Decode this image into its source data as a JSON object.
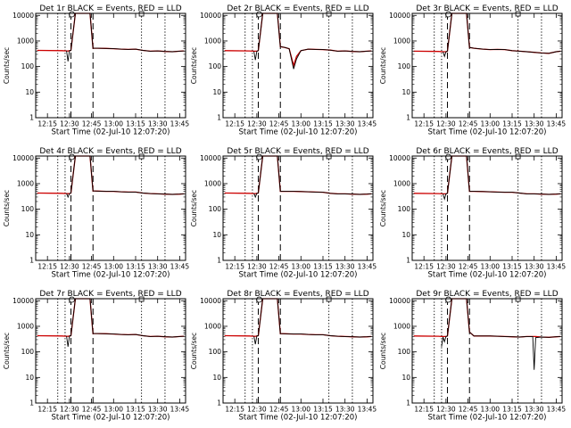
{
  "figure": {
    "x_tick_labels": [
      "12:15",
      "12:30",
      "12:45",
      "13:00",
      "13:15",
      "13:30",
      "13:45"
    ],
    "y_tick_labels": [
      "1",
      "10",
      "100",
      "1000",
      "10000"
    ]
  },
  "chart_data": [
    {
      "type": "line",
      "title": "Det 1r BLACK = Events, RED = LLD",
      "xlabel": "Start Time (02-Jul-10 12:07:20)",
      "ylabel": "Counts/sec",
      "y_scale": "log",
      "ylim": [
        1,
        12000
      ],
      "xlim": [
        "12:07",
        "13:49"
      ],
      "x": [
        "12:08",
        "12:25",
        "12:28",
        "12:29",
        "12:30",
        "12:31",
        "12:34",
        "12:37",
        "12:41",
        "12:44",
        "12:46",
        "12:49",
        "12:55",
        "13:00",
        "13:05",
        "13:10",
        "13:15",
        "13:20",
        "13:25",
        "13:30",
        "13:35",
        "13:40",
        "13:45",
        "13:48"
      ],
      "series": [
        {
          "name": "Events",
          "color": "#000000",
          "values": [
            null,
            null,
            420,
            160,
            420,
            430,
            12000,
            12000,
            12000,
            12000,
            520,
            520,
            510,
            500,
            480,
            470,
            480,
            430,
            400,
            410,
            390,
            380,
            400,
            410
          ]
        },
        {
          "name": "LLD",
          "color": "#cc0000",
          "values": [
            430,
            420,
            410,
            405,
            420,
            430,
            12000,
            12000,
            12000,
            12000,
            520,
            520,
            510,
            500,
            480,
            470,
            480,
            430,
            400,
            410,
            390,
            380,
            400,
            410
          ]
        }
      ],
      "markers": {
        "dotted": [
          "12:22",
          "12:27",
          "13:19",
          "13:35"
        ],
        "dashed": [
          "12:31",
          "12:46"
        ]
      }
    },
    {
      "type": "line",
      "title": "Det 2r BLACK = Events, RED = LLD",
      "xlabel": "Start Time (02-Jul-10 12:07:20)",
      "ylabel": "Counts/sec",
      "y_scale": "log",
      "ylim": [
        1,
        12000
      ],
      "xlim": [
        "12:07",
        "13:49"
      ],
      "x": [
        "12:08",
        "12:25",
        "12:28",
        "12:29",
        "12:30",
        "12:31",
        "12:34",
        "12:37",
        "12:41",
        "12:44",
        "12:46",
        "12:49",
        "12:52",
        "12:55",
        "12:57",
        "13:00",
        "13:05",
        "13:10",
        "13:15",
        "13:20",
        "13:25",
        "13:30",
        "13:35",
        "13:40",
        "13:45",
        "13:48"
      ],
      "series": [
        {
          "name": "Events",
          "color": "#000000",
          "values": [
            null,
            null,
            400,
            180,
            400,
            420,
            12000,
            12000,
            12000,
            12000,
            600,
            560,
            500,
            80,
            200,
            420,
            480,
            470,
            460,
            440,
            400,
            410,
            390,
            380,
            400,
            410
          ]
        },
        {
          "name": "LLD",
          "color": "#cc0000",
          "values": [
            420,
            410,
            400,
            400,
            400,
            420,
            12000,
            12000,
            12000,
            12000,
            600,
            560,
            500,
            110,
            250,
            420,
            480,
            470,
            460,
            440,
            400,
            410,
            390,
            380,
            400,
            410
          ]
        }
      ],
      "markers": {
        "dotted": [
          "12:22",
          "12:27",
          "13:19",
          "13:35"
        ],
        "dashed": [
          "12:31",
          "12:46"
        ]
      }
    },
    {
      "type": "line",
      "title": "Det 3r BLACK = Events, RED = LLD",
      "xlabel": "Start Time (02-Jul-10 12:07:20)",
      "ylabel": "Counts/sec",
      "y_scale": "log",
      "ylim": [
        1,
        12000
      ],
      "xlim": [
        "12:07",
        "13:49"
      ],
      "x": [
        "12:08",
        "12:25",
        "12:28",
        "12:29",
        "12:30",
        "12:31",
        "12:34",
        "12:37",
        "12:41",
        "12:44",
        "12:46",
        "12:49",
        "12:55",
        "13:00",
        "13:05",
        "13:10",
        "13:15",
        "13:20",
        "13:25",
        "13:30",
        "13:35",
        "13:40",
        "13:45",
        "13:48"
      ],
      "series": [
        {
          "name": "Events",
          "color": "#000000",
          "values": [
            null,
            null,
            380,
            250,
            380,
            400,
            12000,
            12000,
            12000,
            12000,
            560,
            520,
            480,
            460,
            470,
            460,
            420,
            400,
            380,
            360,
            340,
            330,
            380,
            400
          ]
        },
        {
          "name": "LLD",
          "color": "#cc0000",
          "values": [
            400,
            390,
            380,
            380,
            380,
            400,
            12000,
            12000,
            12000,
            12000,
            560,
            520,
            480,
            460,
            470,
            460,
            420,
            400,
            380,
            360,
            340,
            330,
            380,
            400
          ]
        }
      ],
      "markers": {
        "dotted": [
          "12:22",
          "12:27",
          "13:19",
          "13:35"
        ],
        "dashed": [
          "12:31",
          "12:46"
        ]
      }
    },
    {
      "type": "line",
      "title": "Det 4r BLACK = Events, RED = LLD",
      "xlabel": "Start Time (02-Jul-10 12:07:20)",
      "ylabel": "Counts/sec",
      "y_scale": "log",
      "ylim": [
        1,
        12000
      ],
      "xlim": [
        "12:07",
        "13:49"
      ],
      "x": [
        "12:08",
        "12:25",
        "12:28",
        "12:29",
        "12:30",
        "12:31",
        "12:34",
        "12:37",
        "12:41",
        "12:44",
        "12:46",
        "12:49",
        "12:55",
        "13:00",
        "13:05",
        "13:10",
        "13:15",
        "13:20",
        "13:25",
        "13:30",
        "13:35",
        "13:40",
        "13:45",
        "13:48"
      ],
      "series": [
        {
          "name": "Events",
          "color": "#000000",
          "values": [
            null,
            null,
            420,
            300,
            410,
            430,
            12000,
            12000,
            12000,
            12000,
            520,
            510,
            500,
            500,
            480,
            470,
            470,
            430,
            410,
            400,
            390,
            380,
            390,
            400
          ]
        },
        {
          "name": "LLD",
          "color": "#cc0000",
          "values": [
            430,
            420,
            410,
            405,
            410,
            430,
            12000,
            12000,
            12000,
            12000,
            520,
            510,
            500,
            500,
            480,
            470,
            470,
            430,
            410,
            400,
            390,
            380,
            390,
            400
          ]
        }
      ],
      "markers": {
        "dotted": [
          "12:22",
          "12:27",
          "13:19",
          "13:35"
        ],
        "dashed": [
          "12:31",
          "12:46"
        ]
      }
    },
    {
      "type": "line",
      "title": "Det 5r BLACK = Events, RED = LLD",
      "xlabel": "Start Time (02-Jul-10 12:07:20)",
      "ylabel": "Counts/sec",
      "y_scale": "log",
      "ylim": [
        1,
        12000
      ],
      "xlim": [
        "12:07",
        "13:49"
      ],
      "x": [
        "12:08",
        "12:25",
        "12:28",
        "12:29",
        "12:30",
        "12:31",
        "12:34",
        "12:37",
        "12:41",
        "12:44",
        "12:46",
        "12:49",
        "12:55",
        "13:00",
        "13:05",
        "13:10",
        "13:15",
        "13:20",
        "13:25",
        "13:30",
        "13:35",
        "13:40",
        "13:45",
        "13:48"
      ],
      "series": [
        {
          "name": "Events",
          "color": "#000000",
          "values": [
            null,
            null,
            420,
            300,
            420,
            430,
            12000,
            12000,
            12000,
            12000,
            500,
            500,
            500,
            490,
            480,
            470,
            460,
            420,
            400,
            400,
            390,
            380,
            390,
            400
          ]
        },
        {
          "name": "LLD",
          "color": "#cc0000",
          "values": [
            430,
            420,
            410,
            405,
            420,
            430,
            12000,
            12000,
            12000,
            12000,
            500,
            500,
            500,
            490,
            480,
            470,
            460,
            420,
            400,
            400,
            390,
            380,
            390,
            400
          ]
        }
      ],
      "markers": {
        "dotted": [
          "12:22",
          "12:27",
          "13:19",
          "13:35"
        ],
        "dashed": [
          "12:31",
          "12:46"
        ]
      }
    },
    {
      "type": "line",
      "title": "Det 6r BLACK = Events, RED = LLD",
      "xlabel": "Start Time (02-Jul-10 12:07:20)",
      "ylabel": "Counts/sec",
      "y_scale": "log",
      "ylim": [
        1,
        12000
      ],
      "xlim": [
        "12:07",
        "13:49"
      ],
      "x": [
        "12:08",
        "12:25",
        "12:28",
        "12:29",
        "12:30",
        "12:31",
        "12:34",
        "12:37",
        "12:41",
        "12:44",
        "12:46",
        "12:49",
        "12:55",
        "13:00",
        "13:05",
        "13:10",
        "13:15",
        "13:20",
        "13:25",
        "13:30",
        "13:35",
        "13:40",
        "13:45",
        "13:48"
      ],
      "series": [
        {
          "name": "Events",
          "color": "#000000",
          "values": [
            null,
            null,
            400,
            250,
            400,
            420,
            12000,
            12000,
            12000,
            12000,
            500,
            500,
            490,
            480,
            470,
            460,
            460,
            430,
            400,
            400,
            390,
            380,
            390,
            400
          ]
        },
        {
          "name": "LLD",
          "color": "#cc0000",
          "values": [
            420,
            410,
            400,
            400,
            400,
            420,
            12000,
            12000,
            12000,
            12000,
            500,
            500,
            490,
            480,
            470,
            460,
            460,
            430,
            400,
            400,
            390,
            380,
            390,
            400
          ]
        }
      ],
      "markers": {
        "dotted": [
          "12:22",
          "12:27",
          "13:19",
          "13:35"
        ],
        "dashed": [
          "12:31",
          "12:46"
        ]
      }
    },
    {
      "type": "line",
      "title": "Det 7r BLACK = Events, RED = LLD",
      "xlabel": "Start Time (02-Jul-10 12:07:20)",
      "ylabel": "Counts/sec",
      "y_scale": "log",
      "ylim": [
        1,
        12000
      ],
      "xlim": [
        "12:07",
        "13:49"
      ],
      "x": [
        "12:08",
        "12:25",
        "12:28",
        "12:29",
        "12:30",
        "12:31",
        "12:34",
        "12:37",
        "12:41",
        "12:44",
        "12:46",
        "12:49",
        "12:55",
        "13:00",
        "13:05",
        "13:10",
        "13:15",
        "13:20",
        "13:25",
        "13:30",
        "13:35",
        "13:40",
        "13:45",
        "13:48"
      ],
      "series": [
        {
          "name": "Events",
          "color": "#000000",
          "values": [
            null,
            null,
            420,
            160,
            420,
            430,
            12000,
            12000,
            12000,
            12000,
            520,
            520,
            510,
            500,
            480,
            470,
            480,
            430,
            400,
            410,
            390,
            380,
            400,
            410
          ]
        },
        {
          "name": "LLD",
          "color": "#cc0000",
          "values": [
            430,
            420,
            410,
            405,
            420,
            430,
            12000,
            12000,
            12000,
            12000,
            520,
            520,
            510,
            500,
            480,
            470,
            480,
            430,
            400,
            410,
            390,
            380,
            400,
            410
          ]
        }
      ],
      "markers": {
        "dotted": [
          "12:22",
          "12:27",
          "13:19",
          "13:35"
        ],
        "dashed": [
          "12:31",
          "12:46"
        ]
      }
    },
    {
      "type": "line",
      "title": "Det 8r BLACK = Events, RED = LLD",
      "xlabel": "Start Time (02-Jul-10 12:07:20)",
      "ylabel": "Counts/sec",
      "y_scale": "log",
      "ylim": [
        1,
        12000
      ],
      "xlim": [
        "12:07",
        "13:49"
      ],
      "x": [
        "12:08",
        "12:25",
        "12:28",
        "12:29",
        "12:30",
        "12:31",
        "12:34",
        "12:37",
        "12:41",
        "12:44",
        "12:46",
        "12:49",
        "12:55",
        "13:00",
        "13:05",
        "13:10",
        "13:15",
        "13:20",
        "13:25",
        "13:30",
        "13:35",
        "13:40",
        "13:45",
        "13:48"
      ],
      "series": [
        {
          "name": "Events",
          "color": "#000000",
          "values": [
            null,
            null,
            420,
            200,
            420,
            430,
            12000,
            12000,
            12000,
            12000,
            520,
            510,
            500,
            500,
            480,
            470,
            470,
            430,
            410,
            400,
            390,
            380,
            390,
            400
          ]
        },
        {
          "name": "LLD",
          "color": "#cc0000",
          "values": [
            430,
            420,
            410,
            405,
            420,
            430,
            12000,
            12000,
            12000,
            12000,
            520,
            510,
            500,
            500,
            480,
            470,
            470,
            430,
            410,
            400,
            390,
            380,
            390,
            400
          ]
        }
      ],
      "markers": {
        "dotted": [
          "12:22",
          "12:27",
          "13:19",
          "13:35"
        ],
        "dashed": [
          "12:31",
          "12:46"
        ]
      }
    },
    {
      "type": "line",
      "title": "Det 9r BLACK = Events, RED = LLD",
      "xlabel": "Start Time (02-Jul-10 12:07:20)",
      "ylabel": "Counts/sec",
      "y_scale": "log",
      "ylim": [
        1,
        12000
      ],
      "xlim": [
        "12:07",
        "13:49"
      ],
      "x": [
        "12:08",
        "12:25",
        "12:27",
        "12:28",
        "12:29",
        "12:30",
        "12:31",
        "12:34",
        "12:37",
        "12:41",
        "12:44",
        "12:46",
        "12:49",
        "12:55",
        "13:00",
        "13:05",
        "13:10",
        "13:15",
        "13:20",
        "13:25",
        "13:29",
        "13:30",
        "13:31",
        "13:35",
        "13:40",
        "13:45",
        "13:48"
      ],
      "series": [
        {
          "name": "Events",
          "color": "#000000",
          "values": [
            null,
            null,
            160,
            380,
            250,
            400,
            420,
            12000,
            12000,
            12000,
            12000,
            600,
            420,
            420,
            420,
            410,
            400,
            390,
            380,
            400,
            400,
            20,
            360,
            380,
            370,
            390,
            400
          ]
        },
        {
          "name": "LLD",
          "color": "#cc0000",
          "values": [
            420,
            410,
            400,
            400,
            400,
            400,
            420,
            12000,
            12000,
            12000,
            12000,
            600,
            420,
            420,
            420,
            410,
            400,
            390,
            380,
            400,
            400,
            400,
            400,
            380,
            370,
            390,
            400
          ]
        }
      ],
      "markers": {
        "dotted": [
          "12:22",
          "12:27",
          "13:19",
          "13:35"
        ],
        "dashed": [
          "12:31",
          "12:46"
        ]
      }
    }
  ]
}
